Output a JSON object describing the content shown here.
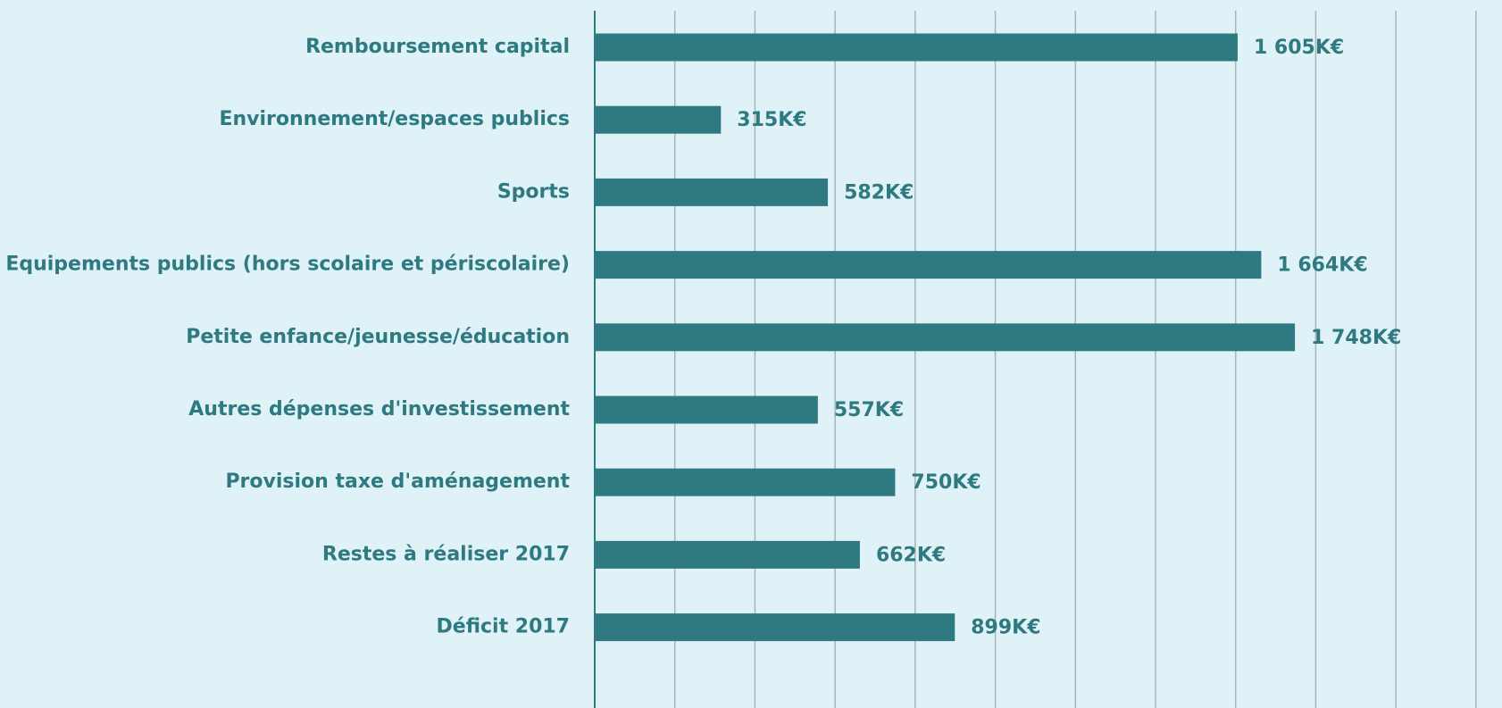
{
  "chart_data": {
    "type": "barh",
    "categories": [
      "Remboursement capital",
      "Environnement/espaces publics",
      "Sports",
      "Equipements publics (hors scolaire et périscolaire)",
      "Petite enfance/jeunesse/éducation",
      "Autres dépenses d'investissement",
      "Provision taxe d'aménagement",
      "Restes à réaliser 2017",
      "Déficit 2017"
    ],
    "values": [
      1605,
      315,
      582,
      1664,
      1748,
      557,
      750,
      662,
      899
    ],
    "value_labels": [
      "1 605K€",
      "315K€",
      "582K€",
      "1 664K€",
      "1 748K€",
      "557K€",
      "750K€",
      "662K€",
      "899K€"
    ],
    "color": "#2e7a80",
    "xlim": [
      0,
      2265
    ],
    "xticks": [
      0,
      200,
      400,
      600,
      800,
      1000,
      1200,
      1400,
      1600,
      1800,
      2000,
      2200
    ],
    "grid": true
  }
}
